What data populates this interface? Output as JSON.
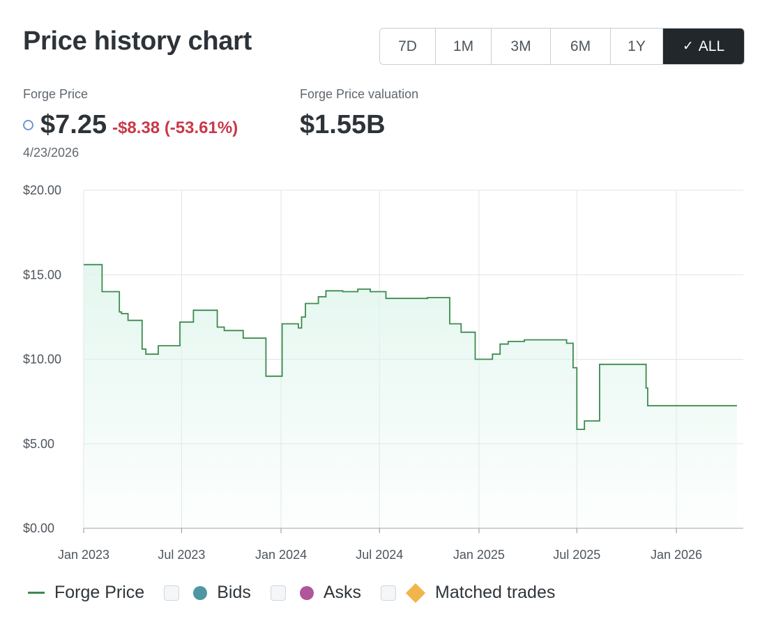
{
  "header": {
    "title": "Price history chart"
  },
  "ranges": [
    {
      "label": "7D",
      "active": false
    },
    {
      "label": "1M",
      "active": false
    },
    {
      "label": "3M",
      "active": false
    },
    {
      "label": "6M",
      "active": false
    },
    {
      "label": "1Y",
      "active": false
    },
    {
      "label": "ALL",
      "active": true
    }
  ],
  "stats": {
    "price_label": "Forge Price",
    "price": "$7.25",
    "change": "-$8.38 (-53.61%)",
    "date": "4/23/2026",
    "valuation_label": "Forge Price valuation",
    "valuation": "$1.55B"
  },
  "legend": {
    "forge_price": "Forge Price",
    "bids": "Bids",
    "asks": "Asks",
    "matched": "Matched trades"
  },
  "colors": {
    "line": "#3b8a4f",
    "fill": "#dff5ec",
    "bids": "#4f96a3",
    "asks": "#b0569c",
    "matched": "#f1b54c",
    "negative": "#c8394a"
  },
  "chart_data": {
    "type": "area",
    "title": "",
    "xlabel": "",
    "ylabel": "",
    "ylim": [
      0,
      20
    ],
    "y_ticks": [
      "$0.00",
      "$5.00",
      "$10.00",
      "$15.00",
      "$20.00"
    ],
    "y_tick_values": [
      0,
      5,
      10,
      15,
      20
    ],
    "x_ticks": [
      "Jan 2023",
      "Jul 2023",
      "Jan 2024",
      "Jul 2024",
      "Jan 2025",
      "Jul 2025",
      "Jan 2026"
    ],
    "x_tick_dates": [
      "2023-01-01",
      "2023-07-01",
      "2024-01-01",
      "2024-07-01",
      "2025-01-01",
      "2025-07-01",
      "2026-01-01"
    ],
    "grid": true,
    "step": true,
    "series": [
      {
        "name": "Forge Price",
        "points": [
          [
            "2023-01-01",
            15.6
          ],
          [
            "2023-02-04",
            14.0
          ],
          [
            "2023-03-08",
            12.8
          ],
          [
            "2023-03-12",
            12.7
          ],
          [
            "2023-03-24",
            12.3
          ],
          [
            "2023-04-19",
            10.6
          ],
          [
            "2023-04-26",
            10.3
          ],
          [
            "2023-05-19",
            10.8
          ],
          [
            "2023-06-28",
            12.2
          ],
          [
            "2023-07-23",
            12.9
          ],
          [
            "2023-09-05",
            11.9
          ],
          [
            "2023-09-18",
            11.7
          ],
          [
            "2023-10-23",
            11.25
          ],
          [
            "2023-12-04",
            9.0
          ],
          [
            "2024-01-01",
            9.0
          ],
          [
            "2024-01-03",
            12.1
          ],
          [
            "2024-02-02",
            11.85
          ],
          [
            "2024-02-08",
            12.5
          ],
          [
            "2024-02-15",
            13.3
          ],
          [
            "2024-03-10",
            13.7
          ],
          [
            "2024-03-24",
            14.05
          ],
          [
            "2024-04-24",
            14.0
          ],
          [
            "2024-05-22",
            14.15
          ],
          [
            "2024-06-14",
            14.0
          ],
          [
            "2024-07-13",
            13.6
          ],
          [
            "2024-09-28",
            13.65
          ],
          [
            "2024-11-08",
            12.1
          ],
          [
            "2024-11-29",
            11.6
          ],
          [
            "2024-12-25",
            10.0
          ],
          [
            "2025-01-26",
            10.3
          ],
          [
            "2025-02-09",
            10.9
          ],
          [
            "2025-02-24",
            11.05
          ],
          [
            "2025-03-26",
            11.15
          ],
          [
            "2025-06-12",
            10.95
          ],
          [
            "2025-06-24",
            9.5
          ],
          [
            "2025-07-01",
            5.85
          ],
          [
            "2025-07-15",
            6.35
          ],
          [
            "2025-08-12",
            9.7
          ],
          [
            "2025-11-06",
            8.3
          ],
          [
            "2025-11-09",
            7.25
          ],
          [
            "2026-04-23",
            7.25
          ]
        ]
      }
    ],
    "legend_position": "bottom-left"
  }
}
